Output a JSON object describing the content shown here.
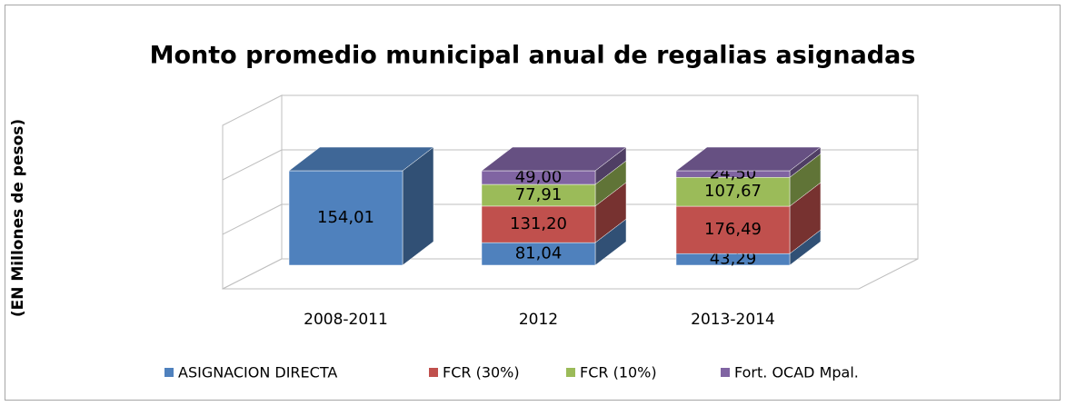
{
  "chart_data": {
    "type": "bar3d",
    "stacked": "percent",
    "title": "Monto promedio municipal anual de regalias asignadas",
    "y_label": "(EN Millones de pesos)",
    "categories": [
      "2008-2011",
      "2012",
      "2013-2014"
    ],
    "ylim": [
      0,
      100
    ],
    "series": [
      {
        "name": "ASIGNACION DIRECTA",
        "color": "#4f81bd",
        "values": [
          154.01,
          81.04,
          43.29
        ],
        "value_labels": [
          "154,01",
          "81,04",
          "43,29"
        ]
      },
      {
        "name": "FCR (30%)",
        "color": "#c0504d",
        "values": [
          null,
          131.2,
          176.49
        ],
        "value_labels": [
          null,
          "131,20",
          "176,49"
        ]
      },
      {
        "name": "FCR (10%)",
        "color": "#9bbb59",
        "values": [
          null,
          77.91,
          107.67
        ],
        "value_labels": [
          null,
          "77,91",
          "107,67"
        ]
      },
      {
        "name": "Fort. OCAD Mpal.",
        "color": "#8064a2",
        "values": [
          null,
          49.0,
          24.5
        ],
        "value_labels": [
          null,
          "49,00",
          "24,50"
        ]
      }
    ]
  }
}
